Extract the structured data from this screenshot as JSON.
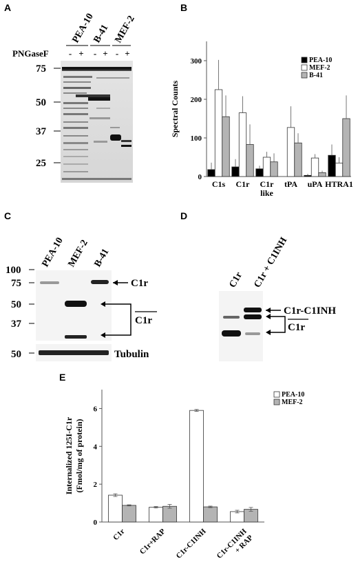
{
  "panels": {
    "A": {
      "label": "A",
      "lanes": [
        "PEA-10",
        "B-41",
        "MEF-2"
      ],
      "treatment": "PNGaseF",
      "signs": [
        "-",
        "+",
        "-",
        "+",
        "-",
        "+"
      ],
      "mw": [
        "75",
        "50",
        "37",
        "25"
      ]
    },
    "B": {
      "label": "B"
    },
    "C": {
      "label": "C",
      "lanes": [
        "PEA-10",
        "MEF-2",
        "B-41"
      ],
      "mw": [
        "100",
        "75",
        "50",
        "37"
      ],
      "tubulin_mw": "50",
      "c1r": "C1r",
      "c1r_bar": "C1r",
      "tubulin": "Tubulin"
    },
    "D": {
      "label": "D",
      "lanes": [
        "C1r",
        "C1r + C1INH"
      ],
      "complex": "C1r-C1INH",
      "c1r_bar": "C1r"
    },
    "E": {
      "label": "E"
    }
  },
  "chart_data": [
    {
      "type": "bar",
      "panel": "B",
      "ylabel": "Spectral Counts",
      "ylim": [
        0,
        350
      ],
      "yticks": [
        0,
        100,
        200,
        300
      ],
      "categories": [
        "C1s",
        "C1r",
        "C1r\nlike",
        "tPA",
        "uPA",
        "HTRA1"
      ],
      "series": [
        {
          "name": "PEA-10",
          "color": "#000000",
          "values": [
            18,
            25,
            20,
            0,
            3,
            55
          ],
          "errors": [
            18,
            20,
            8,
            0,
            4,
            28
          ]
        },
        {
          "name": "MEF-2",
          "color": "#ffffff",
          "values": [
            225,
            165,
            50,
            127,
            48,
            35
          ],
          "errors": [
            77,
            43,
            14,
            55,
            10,
            15
          ]
        },
        {
          "name": "B-41",
          "color": "#b4b4b4",
          "values": [
            155,
            83,
            38,
            87,
            10,
            150
          ],
          "errors": [
            55,
            52,
            22,
            25,
            5,
            60
          ]
        }
      ],
      "legend": "top-right",
      "grid": false
    },
    {
      "type": "bar",
      "panel": "E",
      "ylabel": "Internalized 125I-C1r\n(Fmol/mg of protein)",
      "ylim": [
        0,
        7
      ],
      "yticks": [
        0,
        2,
        4,
        6
      ],
      "categories": [
        "C1r",
        "C1r+RAP",
        "C1r-C1INH",
        "C1r-C1INH\n+ RAP"
      ],
      "series": [
        {
          "name": "PEA-10",
          "color": "#ffffff",
          "values": [
            1.42,
            0.78,
            5.9,
            0.55
          ],
          "errors": [
            0.07,
            0.04,
            0.05,
            0.07
          ]
        },
        {
          "name": "MEF-2",
          "color": "#b4b4b4",
          "values": [
            0.88,
            0.83,
            0.8,
            0.67
          ],
          "errors": [
            0.03,
            0.1,
            0.04,
            0.1
          ]
        }
      ],
      "legend": "top-right",
      "grid": false
    }
  ]
}
